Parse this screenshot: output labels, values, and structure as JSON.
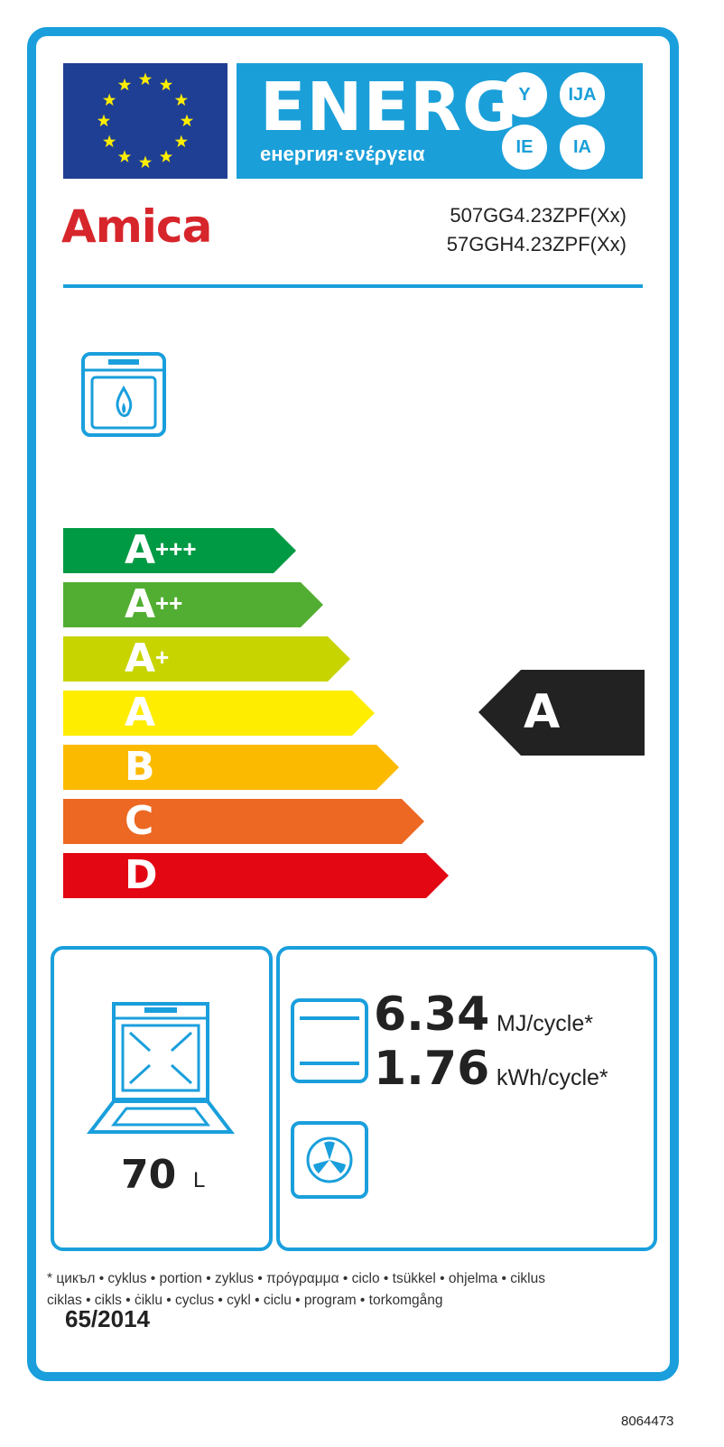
{
  "header": {
    "energy_word": "ENERG",
    "energy_sub": "енергия·ενέργεια",
    "suffixes": [
      "Y",
      "IJA",
      "IE",
      "IA"
    ],
    "flag_color": "#1f3f95",
    "accent": "#1b9fd9"
  },
  "brand": {
    "name": "Amica",
    "color": "#d7262b"
  },
  "models": [
    "507GG4.23ZPF(Xx)",
    "57GGH4.23ZPF(Xx)"
  ],
  "appliance_icon": "gas-oven-icon",
  "scale": [
    {
      "letter": "A",
      "plus": "+++",
      "color": "#009a44"
    },
    {
      "letter": "A",
      "plus": "++",
      "color": "#52ae32"
    },
    {
      "letter": "A",
      "plus": "+",
      "color": "#c8d400"
    },
    {
      "letter": "A",
      "plus": "",
      "color": "#ffed00"
    },
    {
      "letter": "B",
      "plus": "",
      "color": "#fbba00"
    },
    {
      "letter": "C",
      "plus": "",
      "color": "#ec6823"
    },
    {
      "letter": "D",
      "plus": "",
      "color": "#e30613"
    }
  ],
  "rating": {
    "class": "A",
    "color": "#222222"
  },
  "volume": {
    "value": "70",
    "unit": "L"
  },
  "consumption": {
    "conventional_mj": "6.34",
    "unit_mj": "MJ/cycle*",
    "conventional_kwh": "1.76",
    "unit_kwh": "kWh/cycle*"
  },
  "footnote": [
    "* цикъл • cyklus • portion • zyklus • πρόγραμμα • ciclo • tsükkel • ohjelma • ciklus",
    "ciklas • cikls • ċiklu • cyclus • cykl • ciclu • program • torkomgång"
  ],
  "regulation": "65/2014",
  "label_code": "8064473"
}
